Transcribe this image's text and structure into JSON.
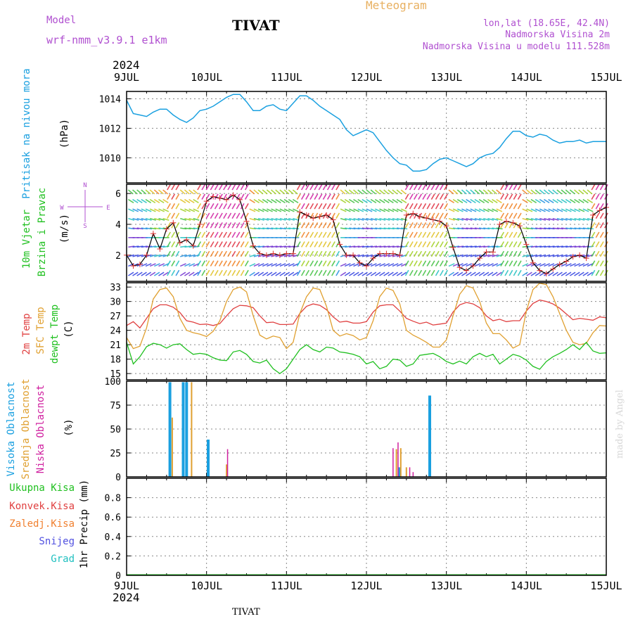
{
  "header": {
    "model_label": "Model",
    "model_name": "wrf-nmm_v3.9.1  e1km",
    "station": "TIVAT",
    "product": "Meteogram",
    "coords": "lon,lat (18.65E, 42.4N)",
    "elevation": "Nadmorska Visina 2m",
    "model_elevation": "Nadmorska Visina u modelu 111.528m",
    "year": "2024",
    "footer_station": "TIVAT",
    "credit": "made by Angel"
  },
  "colors": {
    "pressure": "#1aa0e0",
    "temp2m": "#e04040",
    "sfc_temp": "#e0a030",
    "dewpt": "#20c020",
    "high_cloud": "#1aa0e0",
    "mid_cloud": "#e0a030",
    "low_cloud": "#d020a0",
    "title_purple": "#b050d0",
    "title_orange": "#e8b060",
    "wind_speed_line": "#000000",
    "wind_speed_marker": "#e03030"
  },
  "x_axis": {
    "labels": [
      "9JUL",
      "10JUL",
      "11JUL",
      "12JUL",
      "13JUL",
      "14JUL",
      "15JUL"
    ],
    "domain_hours": [
      0,
      144
    ]
  },
  "panels": {
    "pressure": {
      "ylabel_main": "Pritisak na nivou mora",
      "ylabel_unit": "(hPa)",
      "ticks": [
        "1010",
        "1012",
        "1014"
      ]
    },
    "wind": {
      "ylabel_main": "10m Vjetar",
      "ylabel_sub": "Brzina i Pravac",
      "ylabel_unit": "(m/s)",
      "ticks": [
        "2",
        "4",
        "6"
      ],
      "compass": {
        "n": "N",
        "s": "S",
        "e": "E",
        "w": "W"
      }
    },
    "temp": {
      "ylabel_1": "2m Temp",
      "ylabel_2": "SFC Temp",
      "ylabel_3": "dewpt Temp",
      "ylabel_unit": "(C)",
      "ticks": [
        "15",
        "18",
        "21",
        "24",
        "27",
        "30",
        "33"
      ]
    },
    "cloud": {
      "ylabel_1": "Visoka Oblacnost",
      "ylabel_2": "Srednja Oblacnost",
      "ylabel_3": "Niska Oblacnost",
      "ylabel_unit": "(%)",
      "ticks": [
        "0",
        "25",
        "50",
        "75",
        "100"
      ]
    },
    "precip": {
      "legend_1": "Ukupna Kisa",
      "legend_2": "Konvek.Kisa",
      "legend_3": "Zaledj.Kisa",
      "legend_4": "Snijeg",
      "legend_5": "Grad",
      "ylabel_unit": "1hr Precip (mm)",
      "ticks": [
        "0",
        "0.2",
        "0.4",
        "0.6",
        "0.8"
      ]
    }
  },
  "chart_data": [
    {
      "type": "line",
      "title": "",
      "ylabel": "Pritisak na nivou mora (hPa)",
      "xlabel": "",
      "ylim": [
        1008.3,
        1014.5
      ],
      "series": [
        {
          "name": "Pritisak na nivou mora",
          "x": [
            0,
            2,
            4,
            6,
            8,
            10,
            12,
            14,
            16,
            18,
            20,
            22,
            24,
            26,
            28,
            30,
            32,
            34,
            36,
            38,
            40,
            42,
            44,
            46,
            48,
            50,
            52,
            54,
            56,
            58,
            60,
            62,
            64,
            66,
            68,
            70,
            72,
            74,
            76,
            78,
            80,
            82,
            84,
            86,
            88,
            90,
            92,
            94,
            96,
            98,
            100,
            102,
            104,
            106,
            108,
            110,
            112,
            114,
            116,
            118,
            120,
            122,
            124,
            126,
            128,
            130,
            132,
            134,
            136,
            138,
            140,
            142,
            144
          ],
          "values": [
            1013.9,
            1013.0,
            1012.9,
            1012.8,
            1013.1,
            1013.3,
            1013.3,
            1012.9,
            1012.6,
            1012.4,
            1012.7,
            1013.2,
            1013.3,
            1013.5,
            1013.8,
            1014.1,
            1014.3,
            1014.3,
            1013.8,
            1013.2,
            1013.2,
            1013.5,
            1013.6,
            1013.3,
            1013.2,
            1013.7,
            1014.2,
            1014.2,
            1013.9,
            1013.5,
            1013.2,
            1012.9,
            1012.6,
            1011.9,
            1011.5,
            1011.7,
            1011.9,
            1011.7,
            1011.1,
            1010.5,
            1010.0,
            1009.6,
            1009.5,
            1009.1,
            1009.1,
            1009.2,
            1009.6,
            1009.9,
            1010.0,
            1009.8,
            1009.6,
            1009.4,
            1009.6,
            1010.0,
            1010.2,
            1010.3,
            1010.7,
            1011.3,
            1011.8,
            1011.8,
            1011.5,
            1011.4,
            1011.6,
            1011.5,
            1011.2,
            1011.0,
            1011.1,
            1011.1,
            1011.2,
            1011.0,
            1011.1,
            1011.1,
            1011.1
          ]
        }
      ]
    },
    {
      "type": "line",
      "title": "",
      "ylabel": "10m Vjetar Brzina i Pravac (m/s)",
      "ylim": [
        0.3,
        6.6
      ],
      "series": [
        {
          "name": "10m Vjetar",
          "x": [
            0,
            2,
            4,
            6,
            8,
            10,
            12,
            14,
            16,
            18,
            20,
            22,
            24,
            26,
            28,
            30,
            32,
            34,
            36,
            38,
            40,
            42,
            44,
            46,
            48,
            50,
            52,
            54,
            56,
            58,
            60,
            62,
            64,
            66,
            68,
            70,
            72,
            74,
            76,
            78,
            80,
            82,
            84,
            86,
            88,
            90,
            92,
            94,
            96,
            98,
            100,
            102,
            104,
            106,
            108,
            110,
            112,
            114,
            116,
            118,
            120,
            122,
            124,
            126,
            128,
            130,
            132,
            134,
            136,
            138,
            140,
            142,
            144
          ],
          "values": [
            2.0,
            1.3,
            1.4,
            2.0,
            3.4,
            2.4,
            3.7,
            4.1,
            2.8,
            3.0,
            2.6,
            4.0,
            5.5,
            5.8,
            5.7,
            5.6,
            5.9,
            5.6,
            4.2,
            2.6,
            2.1,
            2.0,
            2.1,
            2.0,
            2.1,
            2.1,
            4.8,
            4.6,
            4.4,
            4.5,
            4.6,
            4.3,
            2.7,
            2.0,
            2.0,
            1.5,
            1.3,
            1.8,
            2.1,
            2.1,
            2.1,
            2.0,
            4.6,
            4.7,
            4.5,
            4.4,
            4.3,
            4.2,
            3.9,
            2.5,
            1.2,
            1.0,
            1.3,
            1.8,
            2.2,
            2.2,
            4.0,
            4.2,
            4.1,
            3.9,
            2.7,
            1.5,
            1.0,
            0.8,
            1.1,
            1.4,
            1.6,
            1.9,
            2.0,
            1.8,
            4.6,
            4.9,
            5.1
          ]
        }
      ]
    },
    {
      "type": "line",
      "title": "",
      "ylabel": "(C)",
      "ylim": [
        13.7,
        33.9
      ],
      "series": [
        {
          "name": "2m Temp",
          "x": [
            0,
            2,
            4,
            6,
            8,
            10,
            12,
            14,
            16,
            18,
            20,
            22,
            24,
            26,
            28,
            30,
            32,
            34,
            36,
            38,
            40,
            42,
            44,
            46,
            48,
            50,
            52,
            54,
            56,
            58,
            60,
            62,
            64,
            66,
            68,
            70,
            72,
            74,
            76,
            78,
            80,
            82,
            84,
            86,
            88,
            90,
            92,
            94,
            96,
            98,
            100,
            102,
            104,
            106,
            108,
            110,
            112,
            114,
            116,
            118,
            120,
            122,
            124,
            126,
            128,
            130,
            132,
            134,
            136,
            138,
            140,
            142,
            144
          ],
          "values": [
            25.0,
            25.8,
            24.5,
            26.5,
            28.5,
            29.3,
            29.3,
            28.8,
            27.7,
            26.0,
            25.7,
            25.2,
            25.3,
            25.0,
            25.4,
            27.0,
            28.5,
            29.2,
            29.1,
            28.7,
            27.0,
            25.6,
            25.7,
            25.2,
            25.2,
            25.3,
            27.5,
            29.0,
            29.5,
            29.2,
            28.3,
            26.8,
            25.7,
            25.9,
            25.5,
            25.5,
            25.8,
            27.8,
            29.1,
            29.3,
            29.3,
            28.0,
            26.5,
            25.9,
            25.4,
            25.7,
            25.1,
            25.3,
            25.5,
            27.8,
            29.3,
            29.8,
            29.5,
            28.7,
            27.0,
            26.0,
            26.3,
            25.8,
            26.0,
            26.0,
            28.0,
            29.6,
            30.3,
            30.0,
            29.5,
            28.6,
            27.4,
            26.2,
            26.5,
            26.3,
            26.1,
            26.8,
            26.6
          ]
        },
        {
          "name": "SFC Temp",
          "x": [
            0,
            2,
            4,
            6,
            8,
            10,
            12,
            14,
            16,
            18,
            20,
            22,
            24,
            26,
            28,
            30,
            32,
            34,
            36,
            38,
            40,
            42,
            44,
            46,
            48,
            50,
            52,
            54,
            56,
            58,
            60,
            62,
            64,
            66,
            68,
            70,
            72,
            74,
            76,
            78,
            80,
            82,
            84,
            86,
            88,
            90,
            92,
            94,
            96,
            98,
            100,
            102,
            104,
            106,
            108,
            110,
            112,
            114,
            116,
            118,
            120,
            122,
            124,
            126,
            128,
            130,
            132,
            134,
            136,
            138,
            140,
            142,
            144
          ],
          "values": [
            22.5,
            20.2,
            20.7,
            24.5,
            30.5,
            32.5,
            32.8,
            31.0,
            26.5,
            24.0,
            23.5,
            23.2,
            22.7,
            23.8,
            26.0,
            30.0,
            32.5,
            33.0,
            32.0,
            27.0,
            23.0,
            22.2,
            22.8,
            22.5,
            20.2,
            21.5,
            27.5,
            31.0,
            32.8,
            32.5,
            29.0,
            24.0,
            22.8,
            23.3,
            22.9,
            22.0,
            22.5,
            26.0,
            31.0,
            32.8,
            32.3,
            29.5,
            24.0,
            23.0,
            22.3,
            21.5,
            20.5,
            20.5,
            22.0,
            27.0,
            31.5,
            33.3,
            32.8,
            30.0,
            25.5,
            23.3,
            23.3,
            22.0,
            20.3,
            21.0,
            28.0,
            32.5,
            33.8,
            33.5,
            31.0,
            27.5,
            24.0,
            21.5,
            21.0,
            21.3,
            23.5,
            25.0,
            24.9
          ]
        },
        {
          "name": "dewpt Temp",
          "x": [
            0,
            2,
            4,
            6,
            8,
            10,
            12,
            14,
            16,
            18,
            20,
            22,
            24,
            26,
            28,
            30,
            32,
            34,
            36,
            38,
            40,
            42,
            44,
            46,
            48,
            50,
            52,
            54,
            56,
            58,
            60,
            62,
            64,
            66,
            68,
            70,
            72,
            74,
            76,
            78,
            80,
            82,
            84,
            86,
            88,
            90,
            92,
            94,
            96,
            98,
            100,
            102,
            104,
            106,
            108,
            110,
            112,
            114,
            116,
            118,
            120,
            122,
            124,
            126,
            128,
            130,
            132,
            134,
            136,
            138,
            140,
            142,
            144
          ],
          "values": [
            21.5,
            17.0,
            18.5,
            20.6,
            21.3,
            21.0,
            20.3,
            21.0,
            21.2,
            20.0,
            19.0,
            19.2,
            19.0,
            18.3,
            17.8,
            17.7,
            19.5,
            19.8,
            19.0,
            17.5,
            17.2,
            17.8,
            16.0,
            15.0,
            16.0,
            18.0,
            20.0,
            21.0,
            20.0,
            19.5,
            20.5,
            20.3,
            19.5,
            19.3,
            19.0,
            18.5,
            17.0,
            17.5,
            16.0,
            16.5,
            18.0,
            17.8,
            16.5,
            17.0,
            18.8,
            19.0,
            19.2,
            18.5,
            17.5,
            17.0,
            17.6,
            17.0,
            18.5,
            19.2,
            18.5,
            19.0,
            17.0,
            18.0,
            19.0,
            18.6,
            17.8,
            16.5,
            15.9,
            17.5,
            18.5,
            19.2,
            20.0,
            21.0,
            20.0,
            21.5,
            19.7,
            19.2,
            19.3
          ]
        }
      ]
    },
    {
      "type": "bar",
      "title": "",
      "ylabel": "(%)",
      "ylim": [
        0,
        100
      ],
      "series": [
        {
          "name": "Visoka Oblacnost",
          "x": [
            13,
            17,
            18,
            24.5,
            82,
            91
          ],
          "values": [
            99,
            99,
            99,
            39,
            10,
            85
          ]
        },
        {
          "name": "Srednja Oblacnost",
          "x": [
            13.7,
            19.5,
            30,
            81,
            82.3,
            84
          ],
          "values": [
            62,
            99,
            13,
            29,
            30,
            10
          ]
        },
        {
          "name": "Niska Oblacnost",
          "x": [
            30.3,
            80,
            81.5,
            85,
            86
          ],
          "values": [
            29,
            30,
            36,
            10,
            5
          ]
        }
      ]
    },
    {
      "type": "bar",
      "title": "",
      "ylabel": "1hr Precip (mm)",
      "ylim": [
        0,
        1.0
      ],
      "series": [
        {
          "name": "Ukupna Kisa",
          "x": [],
          "values": []
        }
      ]
    }
  ]
}
